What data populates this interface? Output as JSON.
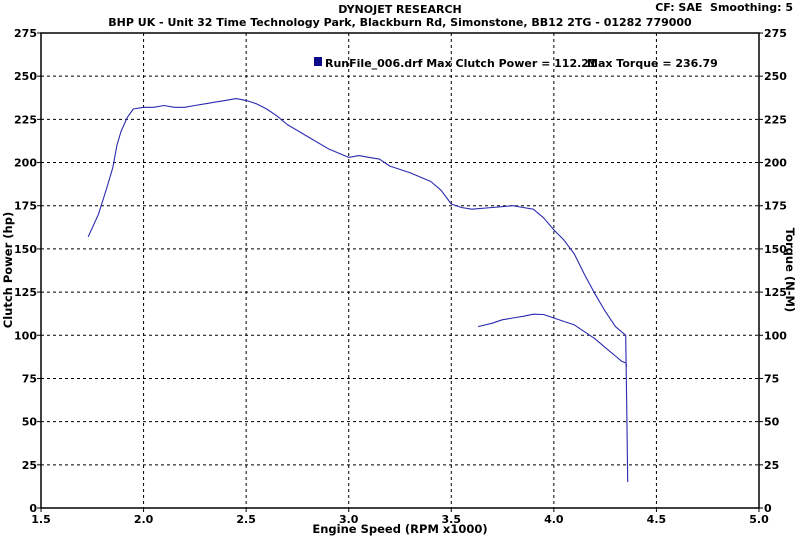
{
  "header": {
    "title": "DYNOJET RESEARCH",
    "subtitle": "BHP UK - Unit 32 Time Technology Park, Blackburn Rd, Simonstone, BB12 2TG - 01282 779000",
    "settings": "CF: SAE  Smoothing: 5"
  },
  "legend": {
    "run_label": "RunFile_006.drf Max Clutch Power = 112.21",
    "torque_label": "Max Torque = 236.79"
  },
  "colors": {
    "line": "#2a2ab0",
    "grid": "#000000",
    "legend_box": "#0a0a8a"
  },
  "chart_data": {
    "type": "line",
    "title": "DYNOJET RESEARCH",
    "xlabel": "Engine Speed (RPM x1000)",
    "ylabel": "Clutch Power (hp)",
    "y2label": "Torque (N-M)",
    "xlim": [
      1.5,
      5.0
    ],
    "ylim": [
      0,
      275
    ],
    "y2lim": [
      0,
      275
    ],
    "x_ticks": [
      "1.5",
      "2.0",
      "2.5",
      "3.0",
      "3.5",
      "4.0",
      "4.5",
      "5.0"
    ],
    "y_ticks": [
      "0",
      "25",
      "50",
      "75",
      "100",
      "125",
      "150",
      "175",
      "200",
      "225",
      "250",
      "275"
    ],
    "grid": true,
    "legend_position": "top-center",
    "series": [
      {
        "name": "",
        "axis": "right",
        "points": [
          [
            1.73,
            157
          ],
          [
            1.78,
            170
          ],
          [
            1.82,
            185
          ],
          [
            1.85,
            197
          ],
          [
            1.87,
            210
          ],
          [
            1.89,
            218
          ],
          [
            1.92,
            226
          ],
          [
            1.95,
            231
          ],
          [
            2.0,
            232
          ],
          [
            2.05,
            232
          ],
          [
            2.1,
            233
          ],
          [
            2.15,
            232
          ],
          [
            2.2,
            232
          ],
          [
            2.25,
            233
          ],
          [
            2.3,
            234
          ],
          [
            2.35,
            235
          ],
          [
            2.4,
            236
          ],
          [
            2.45,
            237
          ],
          [
            2.5,
            236
          ],
          [
            2.55,
            234
          ],
          [
            2.6,
            231
          ],
          [
            2.65,
            227
          ],
          [
            2.7,
            222
          ],
          [
            2.8,
            215
          ],
          [
            2.9,
            208
          ],
          [
            3.0,
            203
          ],
          [
            3.05,
            204
          ],
          [
            3.1,
            203
          ],
          [
            3.15,
            202
          ],
          [
            3.2,
            198
          ],
          [
            3.3,
            194
          ],
          [
            3.4,
            189
          ],
          [
            3.45,
            184
          ],
          [
            3.5,
            176
          ],
          [
            3.55,
            174
          ],
          [
            3.6,
            173
          ],
          [
            3.7,
            174
          ],
          [
            3.8,
            175
          ],
          [
            3.85,
            174
          ],
          [
            3.9,
            173
          ],
          [
            3.95,
            168
          ],
          [
            4.0,
            161
          ],
          [
            4.05,
            155
          ],
          [
            4.1,
            147
          ],
          [
            4.15,
            135
          ],
          [
            4.2,
            124
          ],
          [
            4.25,
            114
          ],
          [
            4.3,
            105
          ],
          [
            4.33,
            102
          ],
          [
            4.35,
            100
          ],
          [
            4.355,
            60
          ],
          [
            4.36,
            15
          ]
        ]
      },
      {
        "name": "",
        "axis": "left",
        "points": [
          [
            3.63,
            105
          ],
          [
            3.7,
            107
          ],
          [
            3.75,
            109
          ],
          [
            3.8,
            110
          ],
          [
            3.85,
            111
          ],
          [
            3.9,
            112.2
          ],
          [
            3.95,
            112
          ],
          [
            4.0,
            110
          ],
          [
            4.05,
            108
          ],
          [
            4.1,
            106
          ],
          [
            4.15,
            102
          ],
          [
            4.2,
            98
          ],
          [
            4.25,
            93
          ],
          [
            4.3,
            88
          ],
          [
            4.33,
            85
          ],
          [
            4.35,
            84
          ],
          [
            4.355,
            82
          ]
        ]
      }
    ]
  }
}
